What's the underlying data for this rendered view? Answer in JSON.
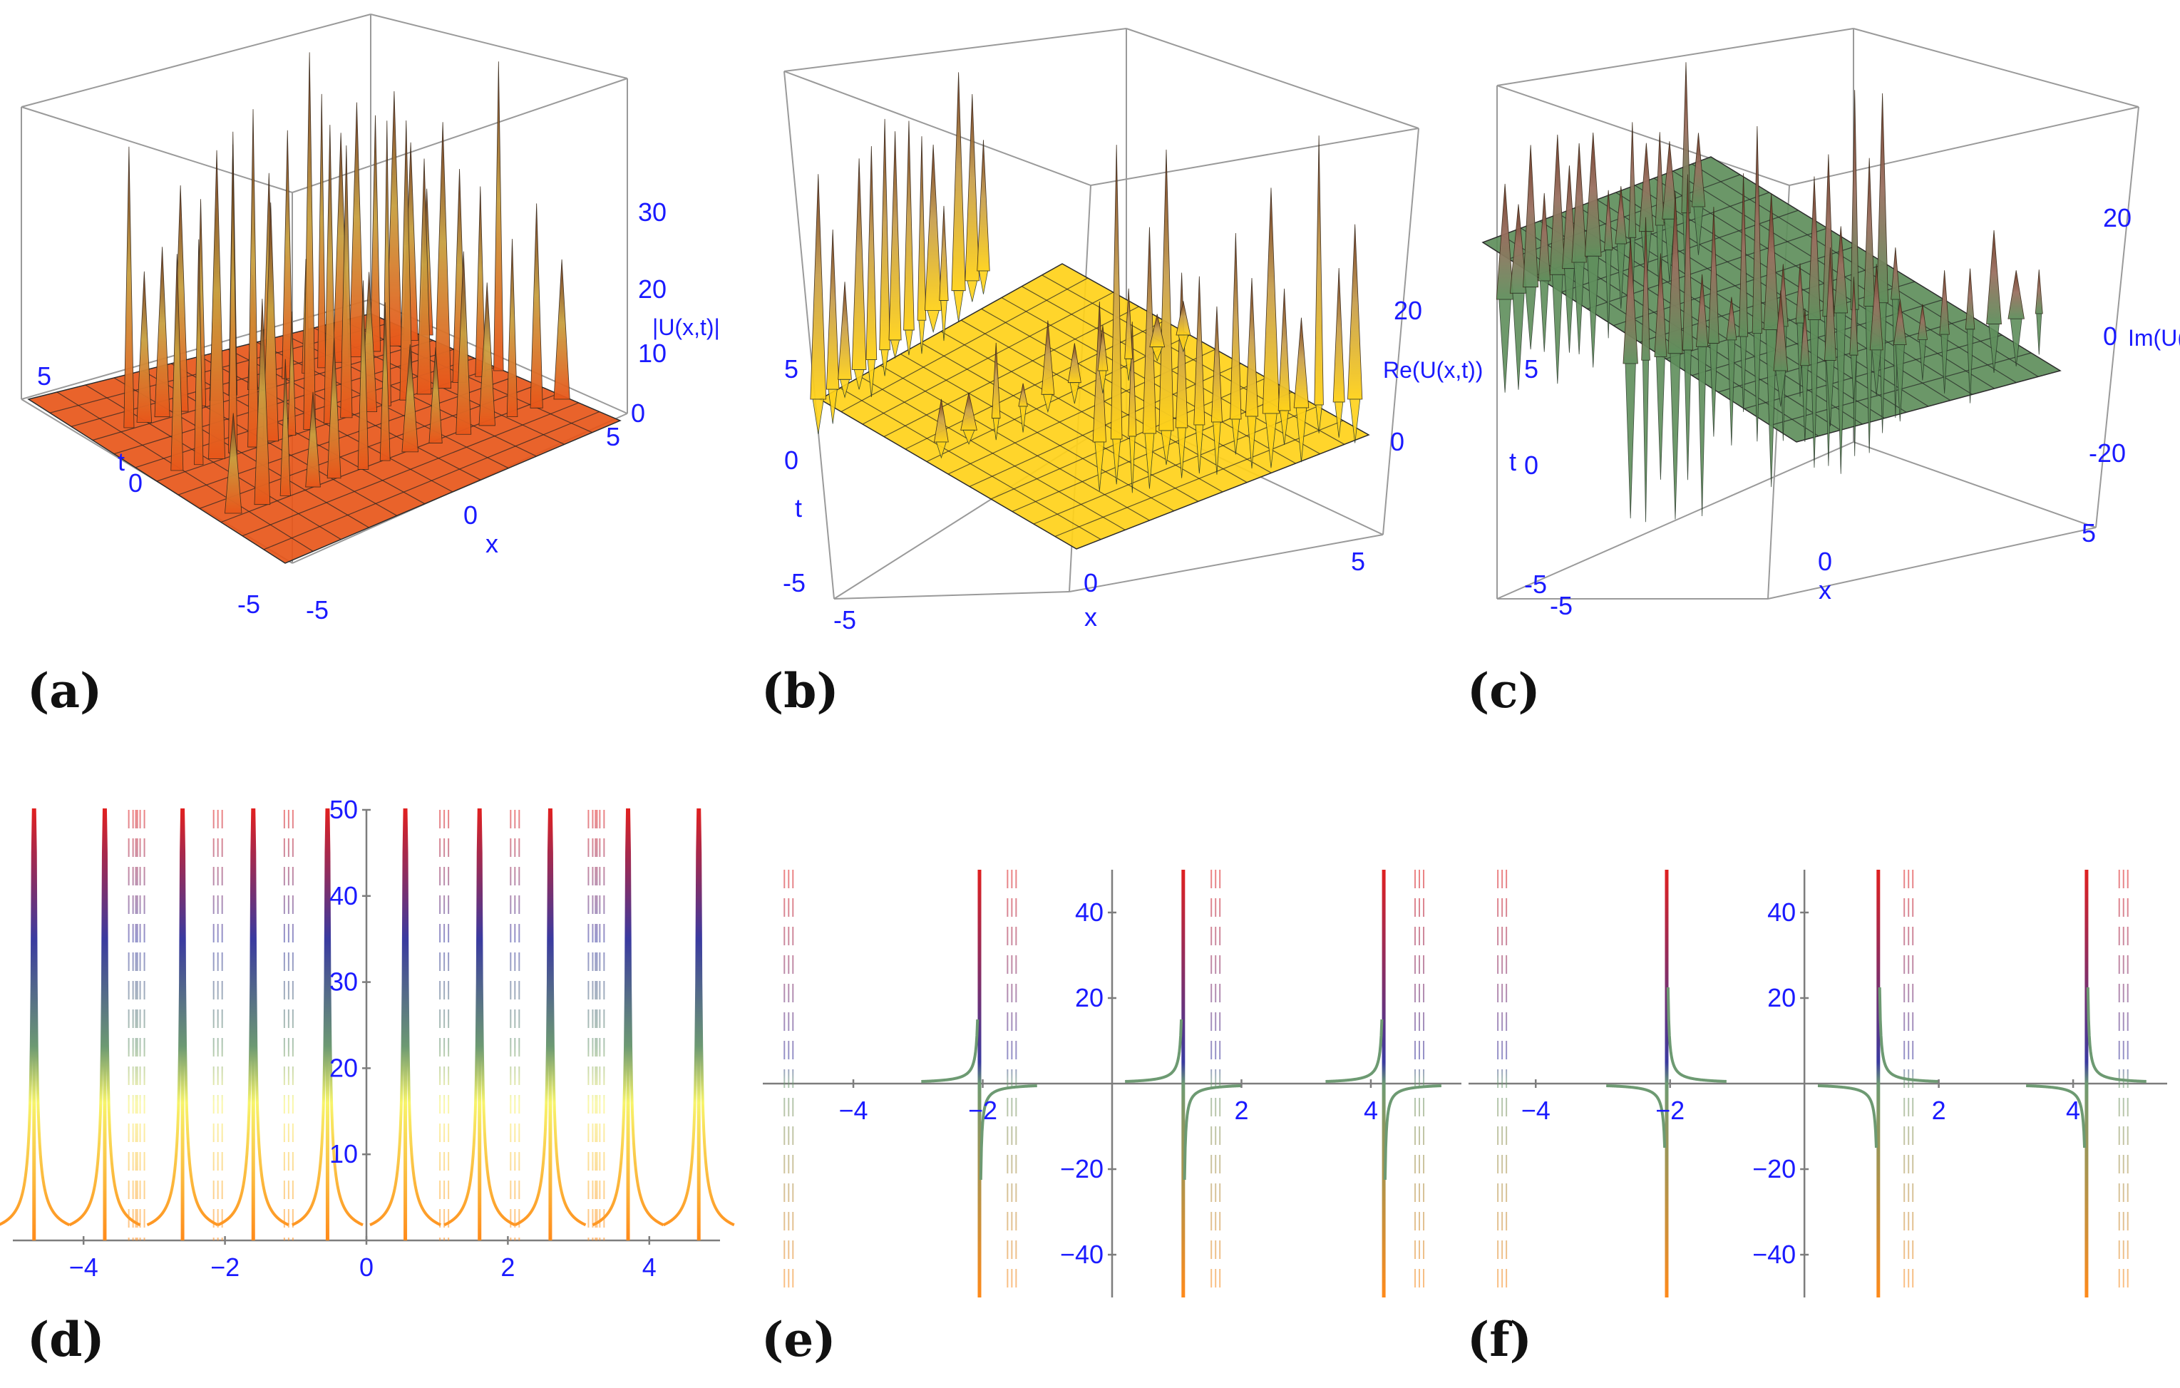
{
  "panels": [
    {
      "id": "a",
      "label": "(a)"
    },
    {
      "id": "b",
      "label": "(b)"
    },
    {
      "id": "c",
      "label": "(c)"
    },
    {
      "id": "d",
      "label": "(d)"
    },
    {
      "id": "e",
      "label": "(e)"
    },
    {
      "id": "f",
      "label": "(f)"
    }
  ],
  "colors": {
    "axis_text": "#1a1aff",
    "surface_orange": "#e8561a",
    "surface_yellow": "#ffd21a",
    "surface_green": "#5f8f5c",
    "spike_dark": "#6b3420",
    "line_red": "#e02020",
    "line_orange": "#ff8a1a",
    "line_blue": "#3a3aa0",
    "line_green": "#6d9a72"
  },
  "chart_data": [
    {
      "id": "a",
      "type": "surface3d",
      "zlabel": "|U(x,t)|",
      "xlabel": "x",
      "ylabel": "t",
      "x_ticks": [
        "-5",
        "0",
        "5"
      ],
      "t_ticks": [
        "-5",
        "0",
        "5"
      ],
      "z_ticks": [
        "0",
        "10",
        "20",
        "30"
      ],
      "x_range": [
        -5,
        5
      ],
      "t_range": [
        -5,
        5
      ],
      "z_range": [
        0,
        35
      ],
      "spike_count": 10
    },
    {
      "id": "b",
      "type": "surface3d",
      "zlabel": "Re(U(x,t))",
      "xlabel": "x",
      "ylabel": "t",
      "x_ticks": [
        "-5",
        "0",
        "5"
      ],
      "t_ticks": [
        "-5",
        "0",
        "5"
      ],
      "z_ticks": [
        "0",
        "20"
      ],
      "x_range": [
        -5,
        5
      ],
      "t_range": [
        -5,
        5
      ],
      "z_range": [
        -30,
        30
      ],
      "spike_count": 10
    },
    {
      "id": "c",
      "type": "surface3d",
      "zlabel": "Im(U(x,t))",
      "xlabel": "x",
      "ylabel": "t",
      "x_ticks": [
        "-5",
        "0",
        "5"
      ],
      "t_ticks": [
        "-5",
        "0",
        "5"
      ],
      "z_ticks": [
        "-20",
        "0",
        "20"
      ],
      "x_range": [
        -5,
        5
      ],
      "t_range": [
        -5,
        5
      ],
      "z_range": [
        -30,
        30
      ],
      "spike_count": 10
    },
    {
      "id": "d",
      "type": "line",
      "x_ticks": [
        "-4",
        "-2",
        "0",
        "2",
        "4"
      ],
      "y_ticks": [
        "10",
        "20",
        "30",
        "40",
        "50"
      ],
      "xlim": [
        -5,
        5
      ],
      "ylim": [
        0,
        50
      ],
      "poles": [
        -4.7,
        -3.7,
        -2.6,
        -1.6,
        -0.55,
        0.55,
        1.6,
        2.6,
        3.7,
        4.7
      ],
      "dashed_poles": [
        -3.3,
        -3.2,
        -2.1,
        -1.1,
        1.1,
        2.1,
        3.2,
        3.3
      ]
    },
    {
      "id": "e",
      "type": "line",
      "x_ticks": [
        "-4",
        "-2",
        "2",
        "4"
      ],
      "y_ticks": [
        "-40",
        "-20",
        "20",
        "40"
      ],
      "xlim": [
        -5.4,
        5.4
      ],
      "ylim": [
        -50,
        50
      ],
      "poles": [
        -2.05,
        1.1,
        4.2
      ],
      "dashed_poles": [
        -5.0,
        -1.55,
        1.6,
        4.75
      ]
    },
    {
      "id": "f",
      "type": "line",
      "x_ticks": [
        "-4",
        "-2",
        "2",
        "4"
      ],
      "y_ticks": [
        "-40",
        "-20",
        "20",
        "40"
      ],
      "xlim": [
        -5.0,
        5.4
      ],
      "ylim": [
        -50,
        50
      ],
      "poles": [
        -2.05,
        1.1,
        4.2
      ],
      "dashed_poles": [
        -4.5,
        1.55,
        4.75
      ]
    }
  ]
}
